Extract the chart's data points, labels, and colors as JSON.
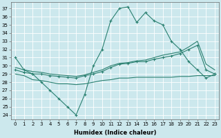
{
  "xlabel": "Humidex (Indice chaleur)",
  "line1_x": [
    0,
    1,
    2,
    3,
    4,
    5,
    6,
    7,
    8,
    9,
    10,
    11,
    12,
    13,
    14,
    15,
    16,
    17,
    18,
    19,
    20,
    21,
    22,
    23
  ],
  "line1_y": [
    31.0,
    29.5,
    29.0,
    28.0,
    27.0,
    26.0,
    25.0,
    24.0,
    26.5,
    30.0,
    32.0,
    35.5,
    37.0,
    37.2,
    35.3,
    36.5,
    35.5,
    35.0,
    33.0,
    32.0,
    30.5,
    29.5,
    28.5,
    29.0
  ],
  "line2_x": [
    0,
    1,
    2,
    3,
    4,
    5,
    6,
    7,
    8,
    9,
    10,
    11,
    12,
    13,
    14,
    15,
    16,
    17,
    18,
    19,
    20,
    21,
    22,
    23
  ],
  "line2_y": [
    29.5,
    29.2,
    29.0,
    29.0,
    28.8,
    28.7,
    28.6,
    28.5,
    28.8,
    29.0,
    29.3,
    29.8,
    30.2,
    30.3,
    30.5,
    30.5,
    30.8,
    31.0,
    31.2,
    31.5,
    32.0,
    32.5,
    29.5,
    29.0
  ],
  "line3_x": [
    0,
    1,
    2,
    3,
    4,
    5,
    6,
    7,
    8,
    9,
    10,
    11,
    12,
    13,
    14,
    15,
    16,
    17,
    18,
    19,
    20,
    21,
    22,
    23
  ],
  "line3_y": [
    29.8,
    29.5,
    29.3,
    29.2,
    29.0,
    28.9,
    28.8,
    28.7,
    28.9,
    29.2,
    29.5,
    30.0,
    30.3,
    30.4,
    30.6,
    30.7,
    31.0,
    31.3,
    31.5,
    31.7,
    32.3,
    33.0,
    30.2,
    29.5
  ],
  "line4_x": [
    0,
    1,
    2,
    3,
    4,
    5,
    6,
    7,
    8,
    9,
    10,
    11,
    12,
    13,
    14,
    15,
    16,
    17,
    18,
    19,
    20,
    21,
    22,
    23
  ],
  "line4_y": [
    29.0,
    28.8,
    28.3,
    28.2,
    28.0,
    27.8,
    27.8,
    27.7,
    27.8,
    28.0,
    28.2,
    28.3,
    28.5,
    28.5,
    28.6,
    28.6,
    28.6,
    28.6,
    28.6,
    28.7,
    28.7,
    28.8,
    28.8,
    28.8
  ],
  "line_color": "#2a8070",
  "bg_color": "#cce8ed",
  "grid_color": "#b0d8de",
  "ylim_min": 23.5,
  "ylim_max": 37.8,
  "ytick_vals": [
    24,
    25,
    26,
    27,
    28,
    29,
    30,
    31,
    32,
    33,
    34,
    35,
    36,
    37
  ],
  "xtick_vals": [
    0,
    1,
    2,
    3,
    4,
    5,
    6,
    7,
    8,
    9,
    10,
    11,
    12,
    13,
    14,
    15,
    16,
    17,
    18,
    19,
    20,
    21,
    22,
    23
  ],
  "tick_fontsize": 5.0,
  "xlabel_fontsize": 6.0
}
